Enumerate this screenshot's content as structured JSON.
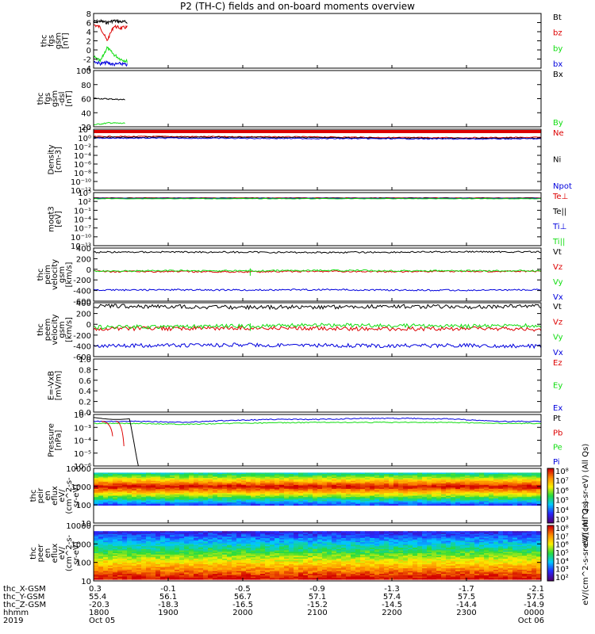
{
  "title": "P2 (TH-C) fields and on-board moments overview",
  "colors": {
    "black": "#000000",
    "red": "#dd0000",
    "green": "#11dd11",
    "blue": "#0000dd",
    "magenta": "#bb00bb",
    "orange": "#ee7700",
    "frame": "#000000"
  },
  "chart_data": [
    {
      "type": "line",
      "panel": "fgs_gsm",
      "ylabel": [
        "thc",
        "fgs",
        "gsm",
        "[nT]"
      ],
      "yticks": [
        "8",
        "6",
        "4",
        "2",
        "0",
        "-2",
        "-4"
      ],
      "ylim": [
        -4,
        8
      ],
      "legend": [
        {
          "name": "Bt",
          "color": "#000000"
        },
        {
          "name": "bz",
          "color": "#dd0000"
        },
        {
          "name": "by",
          "color": "#11dd11"
        },
        {
          "name": "bx",
          "color": "#0000dd"
        }
      ],
      "series": [
        {
          "name": "Bt",
          "x": [
            0.0,
            0.2,
            0.4,
            0.6,
            0.8,
            1.0
          ],
          "values": [
            6.2,
            6.3,
            6.0,
            6.4,
            6.2,
            6.1
          ]
        },
        {
          "name": "bz",
          "x": [
            0.0,
            0.2,
            0.4,
            0.6,
            0.8,
            1.0
          ],
          "values": [
            5.5,
            5.0,
            2.0,
            5.2,
            4.8,
            5.0
          ]
        },
        {
          "name": "by",
          "x": [
            0.0,
            0.2,
            0.4,
            0.6,
            0.8,
            1.0
          ],
          "values": [
            -1.5,
            -2.5,
            0.5,
            -1.0,
            -2.0,
            -2.5
          ]
        },
        {
          "name": "bx",
          "x": [
            0.0,
            0.2,
            0.4,
            0.6,
            0.8,
            1.0
          ],
          "values": [
            -2.5,
            -3.0,
            -2.8,
            -3.2,
            -3.0,
            -3.3
          ]
        }
      ]
    },
    {
      "type": "line",
      "panel": "fgs_gse_dsl",
      "ylabel": [
        "thc",
        "fgs",
        "gsm",
        "-dsl",
        "[nT]"
      ],
      "yticks": [
        "100",
        "80",
        "60",
        "40",
        "20"
      ],
      "ylim": [
        15,
        100
      ],
      "legend": [
        {
          "name": "Bx",
          "color": "#000000"
        },
        {
          "name": "By",
          "color": "#11dd11"
        }
      ],
      "series": [
        {
          "name": "Bx",
          "x": [
            0.0,
            0.5,
            1.0
          ],
          "values": [
            58,
            57,
            56
          ]
        },
        {
          "name": "By",
          "x": [
            0.0,
            0.5,
            1.0
          ],
          "values": [
            18,
            21,
            20
          ]
        }
      ]
    },
    {
      "type": "line",
      "panel": "density",
      "ylabel": [
        "Density",
        "[cm-3]"
      ],
      "yticks": [
        "10²",
        "10⁰",
        "10⁻²",
        "10⁻⁴",
        "10⁻⁶",
        "10⁻⁸",
        "10⁻¹⁰",
        "10⁻¹²"
      ],
      "ylim_log10": [
        -13,
        2
      ],
      "legend": [
        {
          "name": "Ne",
          "color": "#dd0000"
        },
        {
          "name": "Ni",
          "color": "#000000"
        },
        {
          "name": "Npot",
          "color": "#0000dd"
        }
      ],
      "series": [
        {
          "name": "Ne",
          "log10": [
            0.2,
            0.2,
            0.15,
            0.1,
            -0.05,
            -0.1,
            0.0
          ]
        },
        {
          "name": "Ni",
          "log10": [
            0.0,
            0.05,
            0.0,
            -0.05,
            -0.2,
            -0.25,
            -0.2
          ]
        },
        {
          "name": "Npot",
          "log10": [
            -0.2,
            -0.2,
            -0.25,
            -0.3,
            -0.35,
            -0.4,
            -0.35
          ]
        }
      ]
    },
    {
      "type": "line",
      "panel": "temperature",
      "ylabel": [
        "moqt3",
        "[eV]"
      ],
      "yticks": [
        "10⁵",
        "10²",
        "10⁻¹",
        "10⁻⁴",
        "10⁻⁷",
        "10⁻¹⁰",
        "10⁻¹³"
      ],
      "ylim_log10": [
        -14,
        6
      ],
      "legend": [
        {
          "name": "Te⊥",
          "color": "#dd0000"
        },
        {
          "name": "Te||",
          "color": "#000000"
        },
        {
          "name": "Ti⊥",
          "color": "#0000dd"
        },
        {
          "name": "Ti||",
          "color": "#11dd11"
        }
      ],
      "series": [
        {
          "name": "Te⊥",
          "log10": [
            4.0,
            4.0,
            4.0
          ]
        },
        {
          "name": "Te||",
          "log10": [
            3.9,
            3.9,
            3.9
          ]
        },
        {
          "name": "Ti⊥",
          "log10": [
            3.8,
            3.8,
            3.8
          ]
        },
        {
          "name": "Ti||",
          "log10": [
            3.7,
            3.7,
            3.7
          ]
        }
      ]
    },
    {
      "type": "line",
      "panel": "peim_velocity",
      "ylabel": [
        "thc",
        "peim",
        "velocity",
        "gsm",
        "[km/s]"
      ],
      "yticks": [
        "400",
        "200",
        "0",
        "-200",
        "-400",
        "-600"
      ],
      "ylim": [
        -650,
        500
      ],
      "legend": [
        {
          "name": "Vt",
          "color": "#000000"
        },
        {
          "name": "Vz",
          "color": "#dd0000"
        },
        {
          "name": "Vy",
          "color": "#11dd11"
        },
        {
          "name": "Vx",
          "color": "#0000dd"
        }
      ],
      "series": [
        {
          "name": "Vt",
          "values": [
            410,
            415,
            410,
            405,
            410,
            420,
            415
          ]
        },
        {
          "name": "Vz",
          "values": [
            -5,
            -10,
            -15,
            -5,
            -10,
            0,
            -5
          ]
        },
        {
          "name": "Vy",
          "values": [
            0,
            10,
            5,
            15,
            10,
            5,
            10
          ]
        },
        {
          "name": "Vx",
          "values": [
            -410,
            -405,
            -410,
            -400,
            -410,
            -415,
            -405
          ]
        }
      ]
    },
    {
      "type": "line",
      "panel": "peem_velocity",
      "ylabel": [
        "thc",
        "peem",
        "velocity",
        "gsm",
        "[km/s]"
      ],
      "yticks": [
        "400",
        "200",
        "0",
        "-200",
        "-400",
        "-600"
      ],
      "ylim": [
        -650,
        500
      ],
      "legend": [
        {
          "name": "Vt",
          "color": "#000000"
        },
        {
          "name": "Vz",
          "color": "#dd0000"
        },
        {
          "name": "Vy",
          "color": "#11dd11"
        },
        {
          "name": "Vx",
          "color": "#0000dd"
        }
      ],
      "series": [
        {
          "name": "Vt",
          "values": [
            430,
            420,
            400,
            410,
            425,
            410,
            430
          ]
        },
        {
          "name": "Vz",
          "values": [
            -60,
            -50,
            -40,
            -50,
            -60,
            -50,
            -70
          ]
        },
        {
          "name": "Vy",
          "values": [
            -20,
            -10,
            0,
            20,
            10,
            0,
            10
          ]
        },
        {
          "name": "Vx",
          "values": [
            -420,
            -410,
            -400,
            -410,
            -420,
            -410,
            -430
          ]
        }
      ]
    },
    {
      "type": "line",
      "panel": "efield",
      "ylabel": [
        "E=-VxB",
        "[mV/m]"
      ],
      "yticks": [
        "1.0",
        "0.8",
        "0.6",
        "0.4",
        "0.2",
        "0.0"
      ],
      "ylim": [
        0,
        1
      ],
      "legend": [
        {
          "name": "Ez",
          "color": "#dd0000"
        },
        {
          "name": "Ey",
          "color": "#11dd11"
        },
        {
          "name": "Ex",
          "color": "#0000dd"
        }
      ],
      "series": []
    },
    {
      "type": "line",
      "panel": "pressure",
      "ylabel": [
        "Pressure",
        "[nPa]"
      ],
      "yticks": [
        "10⁻²",
        "10⁻³",
        "10⁻⁴",
        "10⁻⁵",
        "10⁻⁶"
      ],
      "ylim_log10": [
        -6.5,
        -1.3
      ],
      "legend": [
        {
          "name": "Pt",
          "color": "#000000"
        },
        {
          "name": "Pb",
          "color": "#dd0000"
        },
        {
          "name": "Pe",
          "color": "#11dd11"
        },
        {
          "name": "Pi",
          "color": "#0000dd"
        }
      ],
      "series": [
        {
          "name": "Pi",
          "log10": [
            -2.0,
            -2.0,
            -2.1,
            -1.9,
            -1.8,
            -1.8,
            -1.7,
            -1.7,
            -1.75,
            -2.0,
            -2.0
          ]
        },
        {
          "name": "Pe",
          "log10": [
            -2.2,
            -2.2,
            -2.3,
            -2.2,
            -2.15,
            -2.1,
            -2.1,
            -2.1,
            -2.1,
            -2.2,
            -2.2
          ]
        }
      ]
    },
    {
      "type": "heatmap",
      "panel": "peir_en_eflux",
      "ylabel": [
        "thc",
        "peir",
        "en",
        "eflux",
        "eV/",
        "(cm^2-s-",
        "sr-eV)"
      ],
      "yticks": [
        "10000",
        "1000",
        "100",
        "10"
      ]
    },
    {
      "type": "heatmap",
      "panel": "peer_en_eflux",
      "ylabel": [
        "thc",
        "peer",
        "en",
        "eflux",
        "eV/",
        "(cm^2-s-",
        "sr-eV)"
      ],
      "yticks": [
        "10000",
        "1000",
        "100",
        "10"
      ]
    }
  ],
  "colorbars": [
    {
      "ticks": [
        "10⁸",
        "10⁷",
        "10⁶",
        "10⁵",
        "10⁴",
        "10³"
      ],
      "label": "eV/(cm^2-s-sr-eV) (All Qs)"
    },
    {
      "ticks": [
        "10⁸",
        "10⁷",
        "10⁶",
        "10⁵",
        "10⁴",
        "10³",
        "10²"
      ],
      "label": "eV/(cm^2-s-sr-eV) (All Qs)"
    }
  ],
  "orbit": {
    "labels": [
      "thc_X-GSM",
      "thc_Y-GSM",
      "thc_Z-GSM",
      "hhmm",
      "2019"
    ],
    "columns": [
      [
        "0.3",
        "55.4",
        "-20.3",
        "1800",
        "Oct 05"
      ],
      [
        "-0.1",
        "56.1",
        "-18.3",
        "1900",
        ""
      ],
      [
        "-0.5",
        "56.7",
        "-16.5",
        "2000",
        ""
      ],
      [
        "-0.9",
        "57.1",
        "-15.2",
        "2100",
        ""
      ],
      [
        "-1.3",
        "57.4",
        "-14.5",
        "2200",
        ""
      ],
      [
        "-1.7",
        "57.5",
        "-14.4",
        "2300",
        ""
      ],
      [
        "-2.1",
        "57.5",
        "-14.9",
        "0000",
        "Oct 06"
      ]
    ]
  }
}
